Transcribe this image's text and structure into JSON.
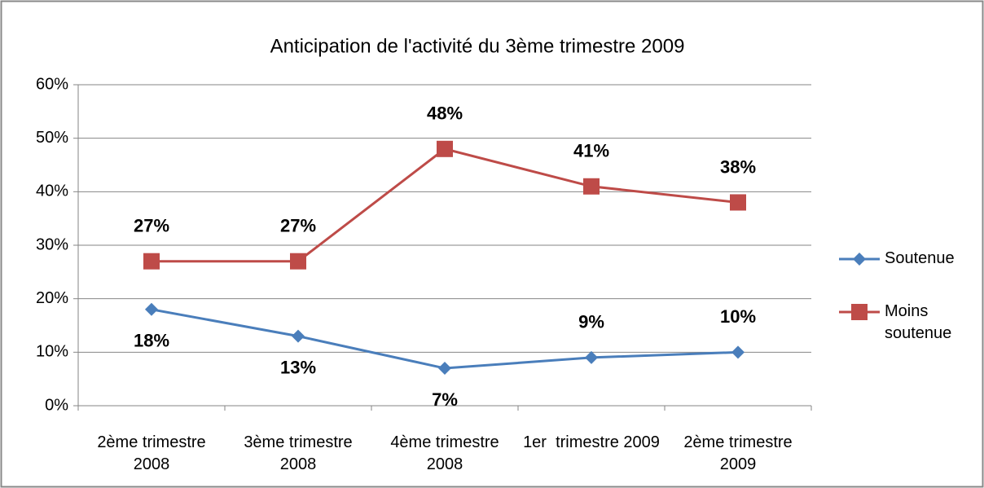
{
  "chart_data": {
    "type": "line",
    "title": "Anticipation de l'activité du 3ème trimestre 2009",
    "categories": [
      "2ème trimestre 2008",
      "3ème trimestre 2008",
      "4ème trimestre 2008",
      "1er  trimestre 2009",
      "2ème trimestre 2009"
    ],
    "series": [
      {
        "name": "Soutenue",
        "color": "#4a7ebb",
        "marker": "diamond",
        "values": [
          18,
          13,
          7,
          9,
          10
        ],
        "value_labels": [
          "18%",
          "13%",
          "7%",
          "9%",
          "10%"
        ]
      },
      {
        "name": "Moins soutenue",
        "color": "#be4b48",
        "marker": "square",
        "values": [
          27,
          27,
          48,
          41,
          38
        ],
        "value_labels": [
          "27%",
          "27%",
          "48%",
          "41%",
          "38%"
        ]
      }
    ],
    "ylim": [
      0,
      60
    ],
    "yticks": [
      {
        "value": 0,
        "label": "0%"
      },
      {
        "value": 10,
        "label": "10%"
      },
      {
        "value": 20,
        "label": "20%"
      },
      {
        "value": 30,
        "label": "30%"
      },
      {
        "value": 40,
        "label": "40%"
      },
      {
        "value": 50,
        "label": "50%"
      },
      {
        "value": 60,
        "label": "60%"
      }
    ],
    "grid": true,
    "legend": "right"
  }
}
